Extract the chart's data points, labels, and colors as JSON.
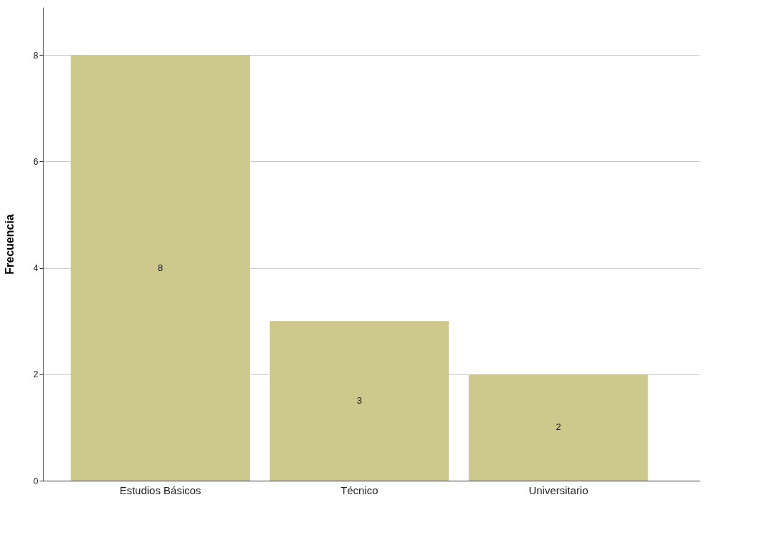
{
  "chart_data": {
    "type": "bar",
    "ylabel": "Frecuencia",
    "categories": [
      "Estudios Básicos",
      "Técnico",
      "Universitario"
    ],
    "values": [
      8,
      3,
      2
    ],
    "color": "#cdc88c",
    "ylim": [
      0,
      8.9
    ],
    "yticks": [
      0,
      2,
      4,
      6,
      8
    ],
    "grid": "y",
    "data_labels": true
  }
}
